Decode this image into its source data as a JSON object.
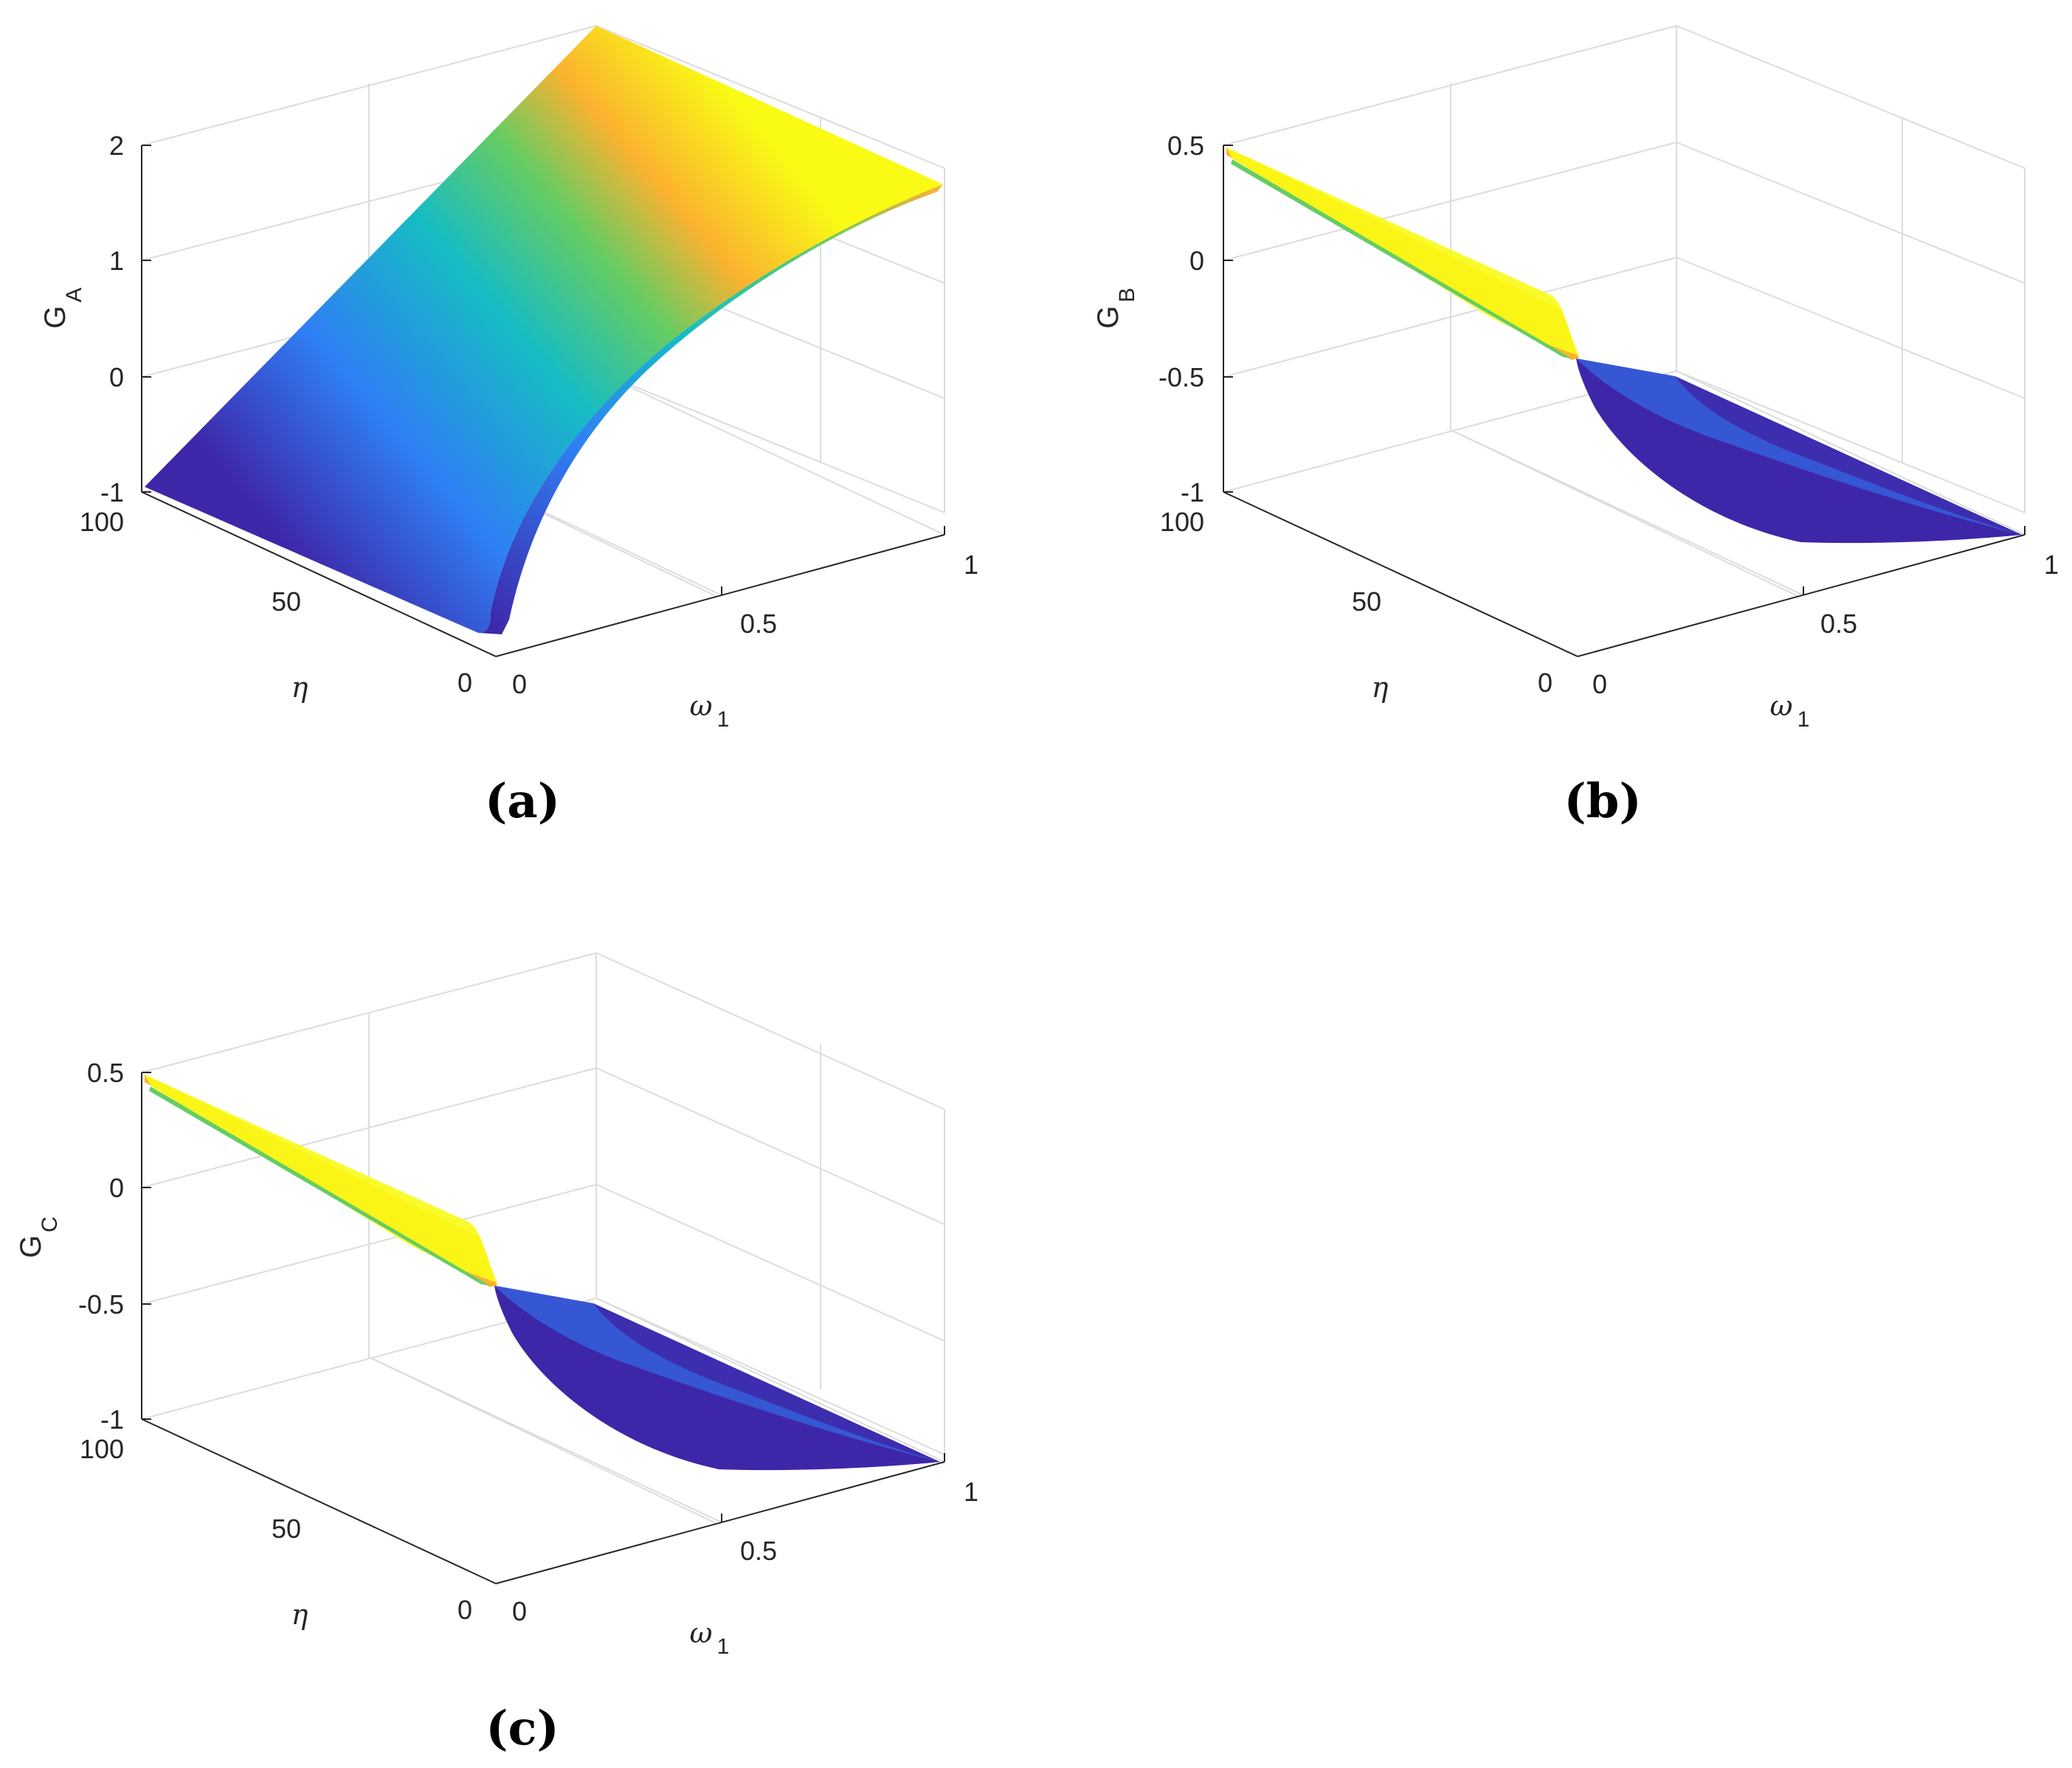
{
  "chart_data": [
    {
      "type": "surface",
      "panel": "a",
      "caption": "(a)",
      "zlabel_main": "G",
      "zlabel_sub": "A",
      "xlabel_sym": "η",
      "ylabel_sym": "ω",
      "ylabel_sub": "1",
      "x_ticks": [
        "100",
        "50",
        "0"
      ],
      "x_tick_values": [
        100,
        50,
        0
      ],
      "y_ticks": [
        "0",
        "0.5",
        "1"
      ],
      "y_tick_values": [
        0,
        0.5,
        1
      ],
      "z_ticks": [
        "2",
        "1",
        "0",
        "-1"
      ],
      "z_tick_values": [
        2,
        1,
        0,
        -1
      ],
      "xlim": [
        0,
        100
      ],
      "ylim": [
        0,
        1
      ],
      "zlim": [
        -1,
        2
      ],
      "grid": true,
      "colormap": "parula",
      "description_values": {
        "eta": [
          0,
          100
        ],
        "omega1": [
          0,
          1
        ],
        "G_at_omega0": -1,
        "G_at_omega1": 2
      }
    },
    {
      "type": "surface",
      "panel": "b",
      "caption": "(b)",
      "zlabel_main": "G",
      "zlabel_sub": "B",
      "xlabel_sym": "η",
      "ylabel_sym": "ω",
      "ylabel_sub": "1",
      "x_ticks": [
        "100",
        "50",
        "0"
      ],
      "x_tick_values": [
        100,
        50,
        0
      ],
      "y_ticks": [
        "0",
        "0.5",
        "1"
      ],
      "y_tick_values": [
        0,
        0.5,
        1
      ],
      "z_ticks": [
        "0.5",
        "0",
        "-0.5",
        "-1"
      ],
      "z_tick_values": [
        0.5,
        0,
        -0.5,
        -1
      ],
      "xlim": [
        0,
        100
      ],
      "ylim": [
        0,
        1
      ],
      "zlim": [
        -1,
        0.5
      ],
      "grid": true,
      "colormap": "parula"
    },
    {
      "type": "surface",
      "panel": "c",
      "caption": "(c)",
      "zlabel_main": "G",
      "zlabel_sub": "C",
      "xlabel_sym": "η",
      "ylabel_sym": "ω",
      "ylabel_sub": "1",
      "x_ticks": [
        "100",
        "50",
        "0"
      ],
      "x_tick_values": [
        100,
        50,
        0
      ],
      "y_ticks": [
        "0",
        "0.5",
        "1"
      ],
      "y_tick_values": [
        0,
        0.5,
        1
      ],
      "z_ticks": [
        "0.5",
        "0",
        "-0.5",
        "-1"
      ],
      "z_tick_values": [
        0.5,
        0,
        -0.5,
        -1
      ],
      "xlim": [
        0,
        100
      ],
      "ylim": [
        0,
        1
      ],
      "zlim": [
        -1,
        0.5
      ],
      "grid": true,
      "colormap": "parula"
    }
  ],
  "colors": {
    "parula_dark_blue": "#3e26a8",
    "parula_blue": "#2f7ff5",
    "parula_cyan": "#16bcc3",
    "parula_green": "#66cc63",
    "parula_orange": "#fbb230",
    "parula_yellow": "#f9fb15"
  }
}
